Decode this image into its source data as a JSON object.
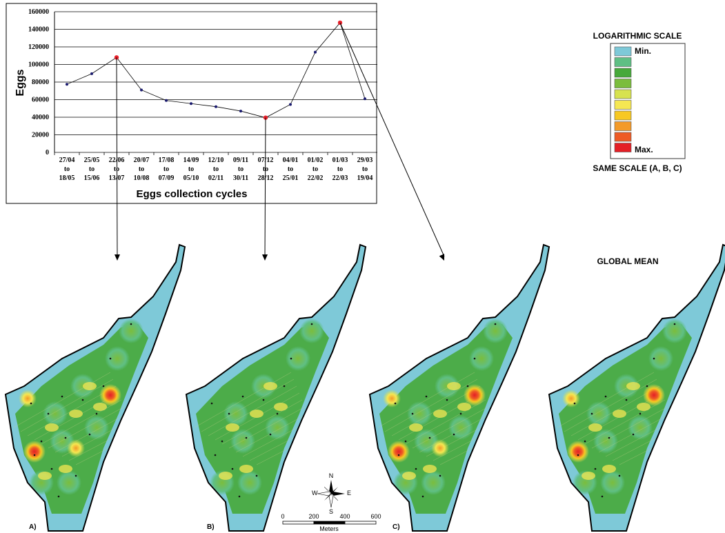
{
  "chart_data": {
    "type": "line",
    "title": "",
    "xlabel": "Eggs collection cycles",
    "ylabel": "Eggs",
    "ylim": [
      0,
      160000
    ],
    "yticks": [
      "0",
      "20000",
      "40000",
      "60000",
      "80000",
      "100000",
      "120000",
      "140000",
      "160000"
    ],
    "grid": true,
    "categories": [
      [
        "27/04",
        "to",
        "18/05"
      ],
      [
        "25/05",
        "to",
        "15/06"
      ],
      [
        "22/06",
        "to",
        "13/07"
      ],
      [
        "20/07",
        "to",
        "10/08"
      ],
      [
        "17/08",
        "to",
        "07/09"
      ],
      [
        "14/09",
        "to",
        "05/10"
      ],
      [
        "12/10",
        "to",
        "02/11"
      ],
      [
        "09/11",
        "to",
        "30/11"
      ],
      [
        "07/12",
        "to",
        "28/12"
      ],
      [
        "04/01",
        "to",
        "25/01"
      ],
      [
        "01/02",
        "to",
        "22/02"
      ],
      [
        "01/03",
        "to",
        "22/03"
      ],
      [
        "29/03",
        "to",
        "19/04"
      ]
    ],
    "values": [
      77500,
      89500,
      108000,
      71000,
      59000,
      55500,
      52000,
      47000,
      39500,
      54500,
      114000,
      147500,
      61000
    ],
    "highlighted": [
      2,
      8,
      11
    ],
    "colors": {
      "line": "#000000",
      "marker": "#1a1a6e",
      "highlight": "#e8202a"
    }
  },
  "legend": {
    "title": "LOGARITHMIC SCALE",
    "min_label": "Min.",
    "max_label": "Max.",
    "subtitle": "SAME SCALE (A, B, C)",
    "colors": [
      "#7ec9d8",
      "#5fbf84",
      "#47a93a",
      "#7bbd3d",
      "#d7e24f",
      "#f5e752",
      "#f7c822",
      "#f39a28",
      "#ee5b25",
      "#e41f26"
    ]
  },
  "maps": [
    {
      "label": "A)",
      "hotspots": [
        "upper-right",
        "left-upper",
        "left-lower",
        "center"
      ]
    },
    {
      "label": "B)",
      "hotspots": []
    },
    {
      "label": "C)",
      "hotspots": [
        "upper-right",
        "left-lower",
        "left-upper",
        "center"
      ]
    },
    {
      "label": "GLOBAL MEAN",
      "hotspots": [
        "upper-right",
        "left-lower",
        "left-upper"
      ]
    }
  ],
  "scale_bar": {
    "ticks": [
      "0",
      "200",
      "400",
      "600"
    ],
    "unit": "Meters"
  },
  "compass": {
    "n": "N",
    "s": "S",
    "e": "E",
    "w": "W"
  }
}
